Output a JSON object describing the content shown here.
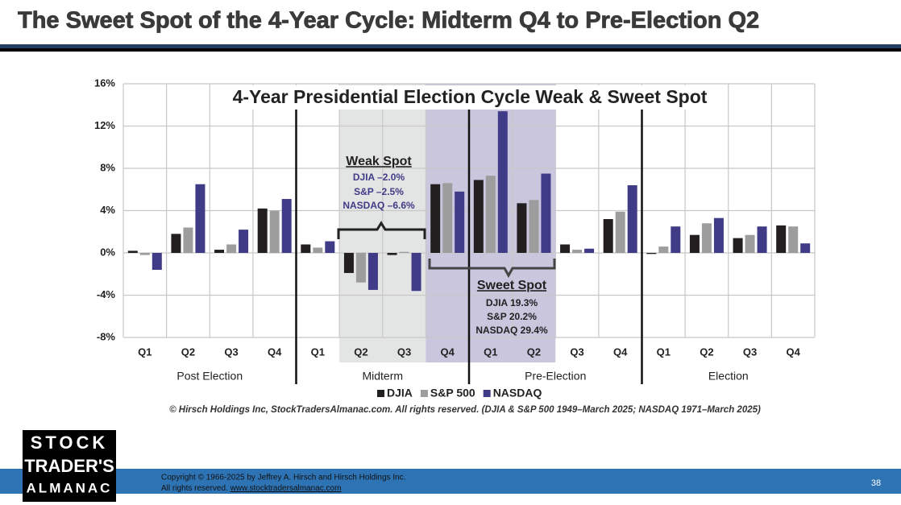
{
  "slide_title": "The Sweet Spot of the 4-Year Cycle: Midterm Q4 to Pre-Election Q2",
  "chart_data": {
    "type": "bar",
    "title": "4-Year Presidential Election Cycle Weak & Sweet Spot",
    "categories": [
      "Q1",
      "Q2",
      "Q3",
      "Q4",
      "Q1",
      "Q2",
      "Q3",
      "Q4",
      "Q1",
      "Q2",
      "Q3",
      "Q4",
      "Q1",
      "Q2",
      "Q3",
      "Q4"
    ],
    "groups": [
      "Post Election",
      "Midterm",
      "Pre-Election",
      "Election"
    ],
    "series": [
      {
        "name": "DJIA",
        "color": "#231f20",
        "values": [
          0.2,
          1.8,
          0.3,
          4.2,
          0.8,
          -1.9,
          -0.2,
          6.5,
          6.9,
          4.7,
          0.8,
          3.2,
          -0.1,
          1.7,
          1.4,
          2.6
        ]
      },
      {
        "name": "S&P 500",
        "color": "#9d9d9d",
        "values": [
          -0.2,
          2.4,
          0.8,
          4.0,
          0.5,
          -2.8,
          0.1,
          6.6,
          7.3,
          5.0,
          0.3,
          3.9,
          0.6,
          2.8,
          1.7,
          2.5
        ]
      },
      {
        "name": "NASDAQ",
        "color": "#3f3b87",
        "values": [
          -1.6,
          6.5,
          2.2,
          5.1,
          1.1,
          -3.5,
          -3.6,
          5.8,
          13.4,
          7.5,
          0.4,
          6.4,
          2.5,
          3.3,
          2.5,
          0.9
        ]
      }
    ],
    "ylim": [
      -8,
      16
    ],
    "yticks": [
      {
        "value": -8,
        "label": "-8%"
      },
      {
        "value": -4,
        "label": "-4%"
      },
      {
        "value": 0,
        "label": "0%"
      },
      {
        "value": 4,
        "label": "4%"
      },
      {
        "value": 8,
        "label": "8%"
      },
      {
        "value": 12,
        "label": "12%"
      },
      {
        "value": 16,
        "label": "16%"
      }
    ],
    "grid": true,
    "annotations": {
      "weak": [
        "Weak Spot",
        "DJIA –2.0%",
        "S&P –2.5%",
        "NASDAQ –6.6%"
      ],
      "sweet": [
        "Sweet Spot",
        "DJIA 19.3%",
        "S&P 20.2%",
        "NASDAQ 29.4%"
      ]
    },
    "source": "© Hirsch Holdings Inc, StockTradersAlmanac.com.  All rights reserved.  (DJIA & S&P 500 1949–March 2025; NASDAQ 1971–March 2025)"
  },
  "logo": [
    "STOCK",
    "TRADER'S",
    "ALMANAC"
  ],
  "footer": {
    "copyright": "Copyright © 1966-2025 by Jeffrey A. Hirsch and Hirsch Holdings Inc.",
    "rights": "All rights reserved.",
    "link": "www.stocktradersalmanac.com",
    "page": "38"
  }
}
